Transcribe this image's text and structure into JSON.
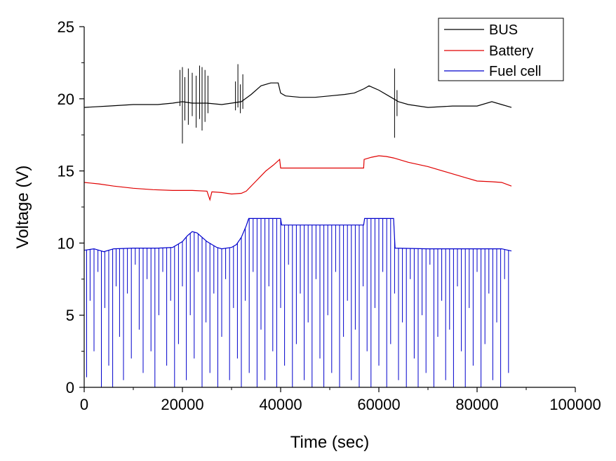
{
  "chart_data": {
    "type": "line",
    "title": "",
    "xlabel": "Time (sec)",
    "ylabel": "Voltage (V)",
    "xlim": [
      0,
      100000
    ],
    "ylim": [
      0,
      25
    ],
    "xticks": [
      0,
      20000,
      40000,
      60000,
      80000,
      100000
    ],
    "xtick_labels": [
      "0",
      "20000",
      "40000",
      "60000",
      "80000",
      "100000"
    ],
    "yticks": [
      0,
      5,
      10,
      15,
      20,
      25
    ],
    "ytick_labels": [
      "0",
      "5",
      "10",
      "15",
      "20",
      "25"
    ],
    "legend": {
      "placement": "top-right"
    },
    "series": [
      {
        "name": "BUS",
        "color": "#000000",
        "x": [
          0,
          5000,
          10000,
          15000,
          18000,
          20000,
          22000,
          25000,
          28000,
          30000,
          32000,
          34000,
          36000,
          38000,
          39500,
          40000,
          41000,
          44000,
          47000,
          50000,
          53000,
          55000,
          57000,
          58000,
          60000,
          62000,
          64000,
          66000,
          70000,
          75000,
          80000,
          83000,
          85000,
          87000
        ],
        "y": [
          19.4,
          19.5,
          19.6,
          19.6,
          19.7,
          19.8,
          19.7,
          19.7,
          19.6,
          19.7,
          19.8,
          20.3,
          20.9,
          21.1,
          21.1,
          20.4,
          20.2,
          20.1,
          20.1,
          20.2,
          20.3,
          20.4,
          20.7,
          20.9,
          20.6,
          20.2,
          19.8,
          19.6,
          19.4,
          19.5,
          19.5,
          19.8,
          19.6,
          19.4
        ],
        "spikes": [
          {
            "x": 19500,
            "min": 19.5,
            "max": 22.0
          },
          {
            "x": 20000,
            "min": 16.9,
            "max": 22.2
          },
          {
            "x": 20500,
            "min": 18.5,
            "max": 21.5
          },
          {
            "x": 21200,
            "min": 18.2,
            "max": 22.1
          },
          {
            "x": 22000,
            "min": 18.8,
            "max": 21.8
          },
          {
            "x": 22800,
            "min": 18.0,
            "max": 21.6
          },
          {
            "x": 23500,
            "min": 18.6,
            "max": 22.3
          },
          {
            "x": 24000,
            "min": 17.8,
            "max": 22.2
          },
          {
            "x": 24600,
            "min": 18.4,
            "max": 22.0
          },
          {
            "x": 25200,
            "min": 19.0,
            "max": 21.6
          },
          {
            "x": 30800,
            "min": 19.2,
            "max": 21.2
          },
          {
            "x": 31300,
            "min": 19.4,
            "max": 22.4
          },
          {
            "x": 31800,
            "min": 19.0,
            "max": 21.0
          },
          {
            "x": 32300,
            "min": 19.3,
            "max": 21.7
          },
          {
            "x": 63200,
            "min": 17.3,
            "max": 22.1
          },
          {
            "x": 63700,
            "min": 18.8,
            "max": 20.6
          }
        ]
      },
      {
        "name": "Battery",
        "color": "#e00000",
        "x": [
          0,
          3000,
          6000,
          10000,
          14000,
          18000,
          22000,
          25000,
          25600,
          26000,
          28000,
          30000,
          32000,
          33000,
          35000,
          37000,
          38500,
          39800,
          40000,
          45000,
          50000,
          55000,
          56900,
          57000,
          58500,
          60000,
          61500,
          63000,
          66000,
          70000,
          74000,
          78000,
          80000,
          83000,
          85000,
          87000
        ],
        "y": [
          14.2,
          14.1,
          13.95,
          13.8,
          13.7,
          13.65,
          13.65,
          13.6,
          13.0,
          13.55,
          13.5,
          13.4,
          13.45,
          13.6,
          14.3,
          15.0,
          15.4,
          15.8,
          15.2,
          15.2,
          15.2,
          15.2,
          15.2,
          15.8,
          15.95,
          16.05,
          16.0,
          15.9,
          15.6,
          15.3,
          14.9,
          14.5,
          14.3,
          14.25,
          14.2,
          13.95
        ]
      },
      {
        "name": "Fuel cell",
        "color": "#0000cc",
        "x": [
          0,
          2000,
          4000,
          6000,
          10000,
          15000,
          18000,
          20000,
          21000,
          22000,
          23000,
          24000,
          25000,
          26000,
          27000,
          28000,
          30000,
          31000,
          32000,
          33000,
          33500,
          40000,
          40200,
          50000,
          56900,
          57100,
          63000,
          63300,
          70000,
          80000,
          85000,
          87000
        ],
        "y": [
          9.5,
          9.6,
          9.4,
          9.6,
          9.65,
          9.65,
          9.7,
          10.1,
          10.5,
          10.8,
          10.7,
          10.4,
          10.1,
          9.9,
          9.7,
          9.6,
          9.7,
          9.9,
          10.4,
          11.2,
          11.7,
          11.7,
          11.25,
          11.25,
          11.25,
          11.7,
          11.7,
          9.65,
          9.6,
          9.6,
          9.6,
          9.45
        ],
        "dropouts": [
          {
            "x": 500,
            "to": 0.7
          },
          {
            "x": 1200,
            "to": 6.0
          },
          {
            "x": 2000,
            "to": 2.5
          },
          {
            "x": 2800,
            "to": 8.0
          },
          {
            "x": 3500,
            "to": 0.0
          },
          {
            "x": 4200,
            "to": 5.5
          },
          {
            "x": 5000,
            "to": 1.5
          },
          {
            "x": 5800,
            "to": 0.0
          },
          {
            "x": 6500,
            "to": 7.0
          },
          {
            "x": 7200,
            "to": 3.5
          },
          {
            "x": 8000,
            "to": 0.5
          },
          {
            "x": 8800,
            "to": 6.5
          },
          {
            "x": 9600,
            "to": 2.0
          },
          {
            "x": 10400,
            "to": 8.5
          },
          {
            "x": 11200,
            "to": 4.0
          },
          {
            "x": 12000,
            "to": 1.0
          },
          {
            "x": 12800,
            "to": 7.5
          },
          {
            "x": 13600,
            "to": 2.5
          },
          {
            "x": 14400,
            "to": 0.0
          },
          {
            "x": 15200,
            "to": 5.0
          },
          {
            "x": 16000,
            "to": 8.0
          },
          {
            "x": 16800,
            "to": 1.5
          },
          {
            "x": 17600,
            "to": 6.0
          },
          {
            "x": 18400,
            "to": 0.0
          },
          {
            "x": 19200,
            "to": 3.0
          },
          {
            "x": 20000,
            "to": 7.0
          },
          {
            "x": 20800,
            "to": 0.5
          },
          {
            "x": 21600,
            "to": 5.0
          },
          {
            "x": 22400,
            "to": 2.0
          },
          {
            "x": 23200,
            "to": 8.0
          },
          {
            "x": 24000,
            "to": 0.0
          },
          {
            "x": 24800,
            "to": 4.5
          },
          {
            "x": 25600,
            "to": 1.0
          },
          {
            "x": 26400,
            "to": 6.5
          },
          {
            "x": 27200,
            "to": 0.0
          },
          {
            "x": 28000,
            "to": 3.5
          },
          {
            "x": 28800,
            "to": 7.5
          },
          {
            "x": 29600,
            "to": 0.5
          },
          {
            "x": 30400,
            "to": 5.5
          },
          {
            "x": 31200,
            "to": 2.0
          },
          {
            "x": 32000,
            "to": 0.0
          },
          {
            "x": 32800,
            "to": 6.0
          },
          {
            "x": 33600,
            "to": 1.0
          },
          {
            "x": 34400,
            "to": 8.0
          },
          {
            "x": 35200,
            "to": 0.0
          },
          {
            "x": 36000,
            "to": 4.0
          },
          {
            "x": 36800,
            "to": 0.5
          },
          {
            "x": 37600,
            "to": 7.0
          },
          {
            "x": 38400,
            "to": 2.5
          },
          {
            "x": 39200,
            "to": 0.0
          },
          {
            "x": 40000,
            "to": 5.5
          },
          {
            "x": 40800,
            "to": 1.5
          },
          {
            "x": 41600,
            "to": 8.5
          },
          {
            "x": 42400,
            "to": 0.0
          },
          {
            "x": 43200,
            "to": 3.0
          },
          {
            "x": 44000,
            "to": 6.5
          },
          {
            "x": 44800,
            "to": 0.5
          },
          {
            "x": 45600,
            "to": 4.5
          },
          {
            "x": 46400,
            "to": 0.0
          },
          {
            "x": 47200,
            "to": 7.5
          },
          {
            "x": 48000,
            "to": 2.0
          },
          {
            "x": 48800,
            "to": 0.0
          },
          {
            "x": 49600,
            "to": 5.0
          },
          {
            "x": 50400,
            "to": 1.0
          },
          {
            "x": 51200,
            "to": 8.0
          },
          {
            "x": 52000,
            "to": 0.0
          },
          {
            "x": 52800,
            "to": 3.5
          },
          {
            "x": 53600,
            "to": 6.0
          },
          {
            "x": 54400,
            "to": 0.5
          },
          {
            "x": 55200,
            "to": 4.0
          },
          {
            "x": 56000,
            "to": 0.0
          },
          {
            "x": 56800,
            "to": 7.0
          },
          {
            "x": 57600,
            "to": 2.5
          },
          {
            "x": 58400,
            "to": 0.0
          },
          {
            "x": 59200,
            "to": 5.5
          },
          {
            "x": 60000,
            "to": 1.5
          },
          {
            "x": 60800,
            "to": 8.0
          },
          {
            "x": 61600,
            "to": 0.0
          },
          {
            "x": 62400,
            "to": 3.0
          },
          {
            "x": 63200,
            "to": 6.5
          },
          {
            "x": 64000,
            "to": 0.5
          },
          {
            "x": 64800,
            "to": 4.5
          },
          {
            "x": 65600,
            "to": 0.0
          },
          {
            "x": 66400,
            "to": 7.5
          },
          {
            "x": 67200,
            "to": 2.0
          },
          {
            "x": 68000,
            "to": 0.0
          },
          {
            "x": 68800,
            "to": 5.0
          },
          {
            "x": 69600,
            "to": 1.0
          },
          {
            "x": 70400,
            "to": 8.5
          },
          {
            "x": 71200,
            "to": 0.0
          },
          {
            "x": 72000,
            "to": 3.5
          },
          {
            "x": 72800,
            "to": 6.0
          },
          {
            "x": 73600,
            "to": 0.5
          },
          {
            "x": 74400,
            "to": 4.0
          },
          {
            "x": 75200,
            "to": 0.0
          },
          {
            "x": 76000,
            "to": 7.0
          },
          {
            "x": 76800,
            "to": 2.5
          },
          {
            "x": 77600,
            "to": 0.0
          },
          {
            "x": 78400,
            "to": 5.5
          },
          {
            "x": 79200,
            "to": 1.5
          },
          {
            "x": 80000,
            "to": 8.0
          },
          {
            "x": 80800,
            "to": 0.0
          },
          {
            "x": 81600,
            "to": 3.0
          },
          {
            "x": 82400,
            "to": 6.5
          },
          {
            "x": 83200,
            "to": 0.5
          },
          {
            "x": 84000,
            "to": 4.5
          },
          {
            "x": 84800,
            "to": 0.0
          },
          {
            "x": 85600,
            "to": 7.5
          },
          {
            "x": 86400,
            "to": 1.0
          }
        ]
      }
    ]
  }
}
